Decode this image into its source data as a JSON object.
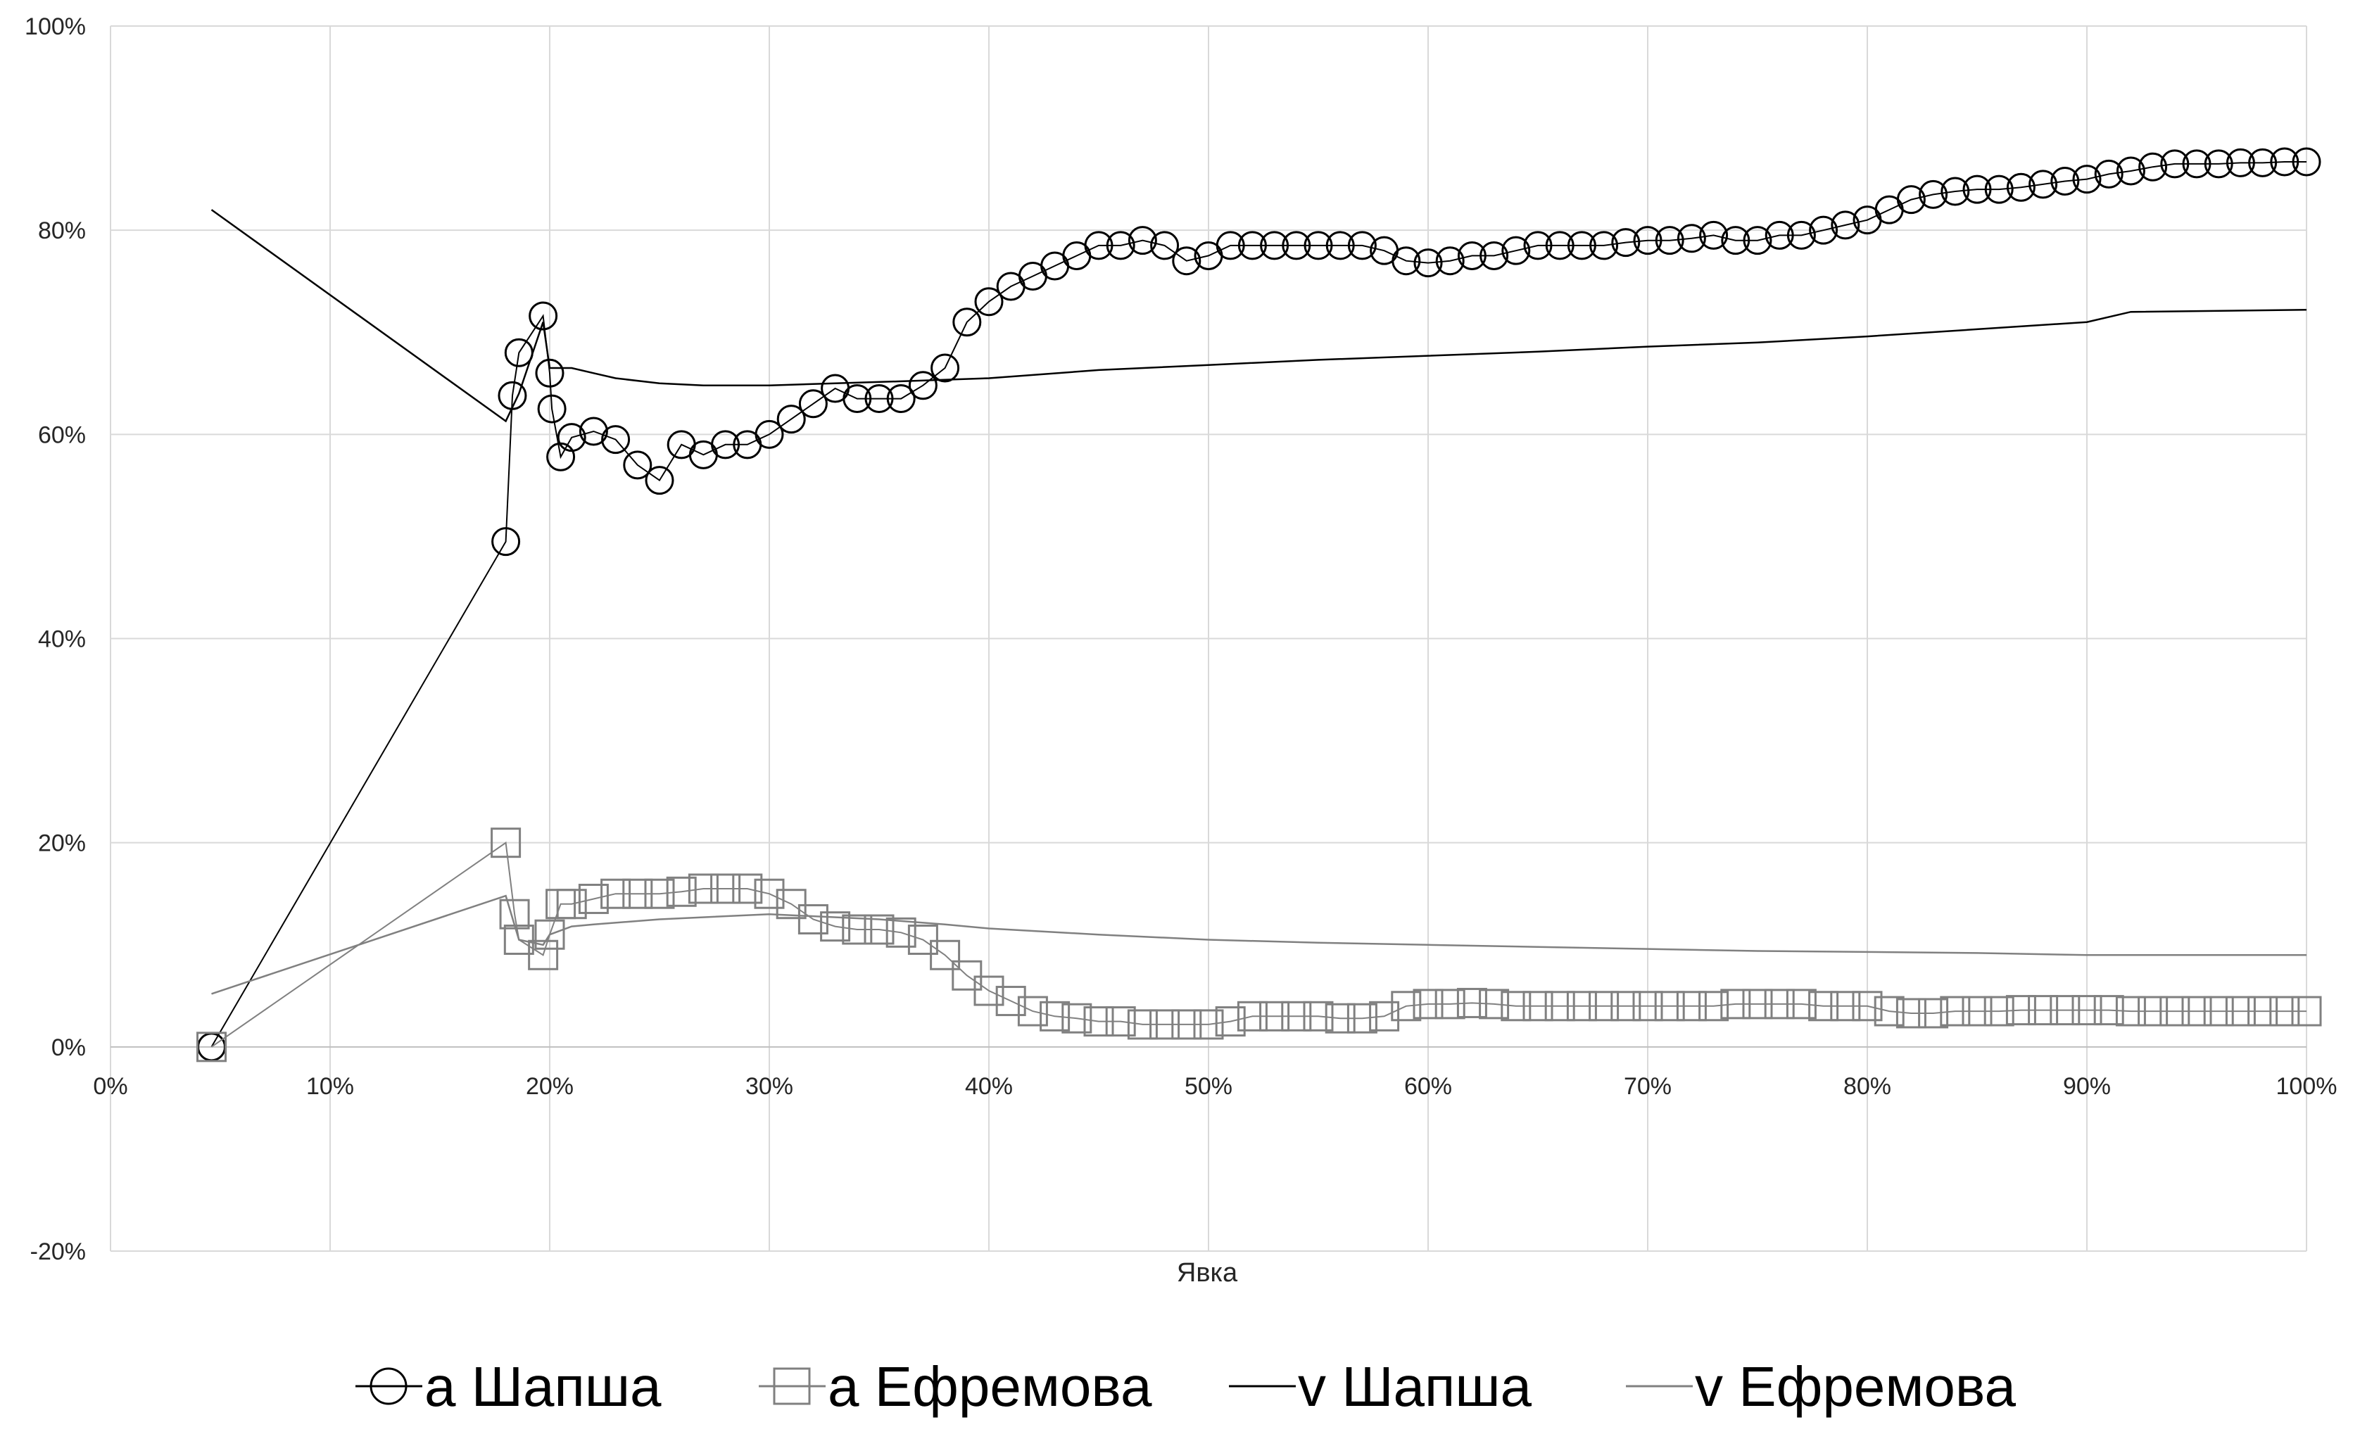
{
  "chart_data": {
    "type": "line",
    "xlabel": "Явка",
    "ylabel": "",
    "xlim": [
      0,
      1
    ],
    "ylim": [
      -0.2,
      1
    ],
    "x_ticks": [
      "0%",
      "10%",
      "20%",
      "30%",
      "40%",
      "50%",
      "60%",
      "70%",
      "80%",
      "90%",
      "100%"
    ],
    "y_ticks": [
      "-20%",
      "0%",
      "20%",
      "40%",
      "60%",
      "80%",
      "100%"
    ],
    "grid": true,
    "legend_position": "bottom",
    "series": [
      {
        "name": "а Шапша",
        "style": "line-circle-markers",
        "color": "#000000",
        "points": [
          [
            0.046,
            0.0
          ],
          [
            0.18,
            0.495
          ],
          [
            0.183,
            0.638
          ],
          [
            0.186,
            0.68
          ],
          [
            0.197,
            0.716
          ],
          [
            0.2,
            0.66
          ],
          [
            0.201,
            0.625
          ],
          [
            0.205,
            0.578
          ],
          [
            0.21,
            0.597
          ],
          [
            0.22,
            0.603
          ],
          [
            0.23,
            0.595
          ],
          [
            0.24,
            0.57
          ],
          [
            0.25,
            0.555
          ],
          [
            0.26,
            0.59
          ],
          [
            0.27,
            0.58
          ],
          [
            0.28,
            0.59
          ],
          [
            0.29,
            0.59
          ],
          [
            0.3,
            0.6
          ],
          [
            0.31,
            0.615
          ],
          [
            0.32,
            0.63
          ],
          [
            0.33,
            0.645
          ],
          [
            0.34,
            0.635
          ],
          [
            0.35,
            0.635
          ],
          [
            0.36,
            0.635
          ],
          [
            0.37,
            0.648
          ],
          [
            0.38,
            0.665
          ],
          [
            0.39,
            0.71
          ],
          [
            0.4,
            0.73
          ],
          [
            0.41,
            0.745
          ],
          [
            0.42,
            0.755
          ],
          [
            0.43,
            0.765
          ],
          [
            0.44,
            0.775
          ],
          [
            0.45,
            0.785
          ],
          [
            0.46,
            0.785
          ],
          [
            0.47,
            0.79
          ],
          [
            0.48,
            0.785
          ],
          [
            0.49,
            0.77
          ],
          [
            0.5,
            0.775
          ],
          [
            0.51,
            0.785
          ],
          [
            0.52,
            0.785
          ],
          [
            0.53,
            0.785
          ],
          [
            0.54,
            0.785
          ],
          [
            0.55,
            0.785
          ],
          [
            0.56,
            0.785
          ],
          [
            0.57,
            0.785
          ],
          [
            0.58,
            0.78
          ],
          [
            0.59,
            0.77
          ],
          [
            0.6,
            0.768
          ],
          [
            0.61,
            0.77
          ],
          [
            0.62,
            0.775
          ],
          [
            0.63,
            0.775
          ],
          [
            0.64,
            0.78
          ],
          [
            0.65,
            0.785
          ],
          [
            0.66,
            0.785
          ],
          [
            0.67,
            0.785
          ],
          [
            0.68,
            0.785
          ],
          [
            0.69,
            0.788
          ],
          [
            0.7,
            0.79
          ],
          [
            0.71,
            0.79
          ],
          [
            0.72,
            0.792
          ],
          [
            0.73,
            0.795
          ],
          [
            0.74,
            0.79
          ],
          [
            0.75,
            0.79
          ],
          [
            0.76,
            0.795
          ],
          [
            0.77,
            0.795
          ],
          [
            0.78,
            0.8
          ],
          [
            0.79,
            0.805
          ],
          [
            0.8,
            0.81
          ],
          [
            0.81,
            0.82
          ],
          [
            0.82,
            0.83
          ],
          [
            0.83,
            0.835
          ],
          [
            0.84,
            0.838
          ],
          [
            0.85,
            0.84
          ],
          [
            0.86,
            0.84
          ],
          [
            0.87,
            0.842
          ],
          [
            0.88,
            0.845
          ],
          [
            0.89,
            0.848
          ],
          [
            0.9,
            0.85
          ],
          [
            0.91,
            0.855
          ],
          [
            0.92,
            0.858
          ],
          [
            0.93,
            0.862
          ],
          [
            0.94,
            0.865
          ],
          [
            0.95,
            0.865
          ],
          [
            0.96,
            0.865
          ],
          [
            0.97,
            0.866
          ],
          [
            0.98,
            0.866
          ],
          [
            0.99,
            0.867
          ],
          [
            1.0,
            0.867
          ]
        ]
      },
      {
        "name": "а Ефремова",
        "style": "line-square-markers",
        "color": "#808080",
        "points": [
          [
            0.046,
            0.0
          ],
          [
            0.18,
            0.2
          ],
          [
            0.184,
            0.13
          ],
          [
            0.186,
            0.105
          ],
          [
            0.197,
            0.09
          ],
          [
            0.2,
            0.11
          ],
          [
            0.205,
            0.14
          ],
          [
            0.21,
            0.14
          ],
          [
            0.22,
            0.145
          ],
          [
            0.23,
            0.15
          ],
          [
            0.24,
            0.15
          ],
          [
            0.25,
            0.15
          ],
          [
            0.26,
            0.152
          ],
          [
            0.27,
            0.155
          ],
          [
            0.28,
            0.155
          ],
          [
            0.29,
            0.155
          ],
          [
            0.3,
            0.15
          ],
          [
            0.31,
            0.14
          ],
          [
            0.32,
            0.125
          ],
          [
            0.33,
            0.118
          ],
          [
            0.34,
            0.115
          ],
          [
            0.35,
            0.115
          ],
          [
            0.36,
            0.112
          ],
          [
            0.37,
            0.105
          ],
          [
            0.38,
            0.09
          ],
          [
            0.39,
            0.07
          ],
          [
            0.4,
            0.055
          ],
          [
            0.41,
            0.045
          ],
          [
            0.42,
            0.035
          ],
          [
            0.43,
            0.03
          ],
          [
            0.44,
            0.028
          ],
          [
            0.45,
            0.025
          ],
          [
            0.46,
            0.025
          ],
          [
            0.47,
            0.022
          ],
          [
            0.48,
            0.022
          ],
          [
            0.49,
            0.022
          ],
          [
            0.5,
            0.022
          ],
          [
            0.51,
            0.025
          ],
          [
            0.52,
            0.03
          ],
          [
            0.53,
            0.03
          ],
          [
            0.54,
            0.03
          ],
          [
            0.55,
            0.03
          ],
          [
            0.56,
            0.028
          ],
          [
            0.57,
            0.028
          ],
          [
            0.58,
            0.03
          ],
          [
            0.59,
            0.04
          ],
          [
            0.6,
            0.042
          ],
          [
            0.61,
            0.042
          ],
          [
            0.62,
            0.043
          ],
          [
            0.63,
            0.042
          ],
          [
            0.64,
            0.04
          ],
          [
            0.65,
            0.04
          ],
          [
            0.66,
            0.04
          ],
          [
            0.67,
            0.04
          ],
          [
            0.68,
            0.04
          ],
          [
            0.69,
            0.04
          ],
          [
            0.7,
            0.04
          ],
          [
            0.71,
            0.04
          ],
          [
            0.72,
            0.04
          ],
          [
            0.73,
            0.04
          ],
          [
            0.74,
            0.042
          ],
          [
            0.75,
            0.042
          ],
          [
            0.76,
            0.042
          ],
          [
            0.77,
            0.042
          ],
          [
            0.78,
            0.04
          ],
          [
            0.79,
            0.04
          ],
          [
            0.8,
            0.04
          ],
          [
            0.81,
            0.035
          ],
          [
            0.82,
            0.033
          ],
          [
            0.83,
            0.033
          ],
          [
            0.84,
            0.035
          ],
          [
            0.85,
            0.035
          ],
          [
            0.86,
            0.035
          ],
          [
            0.87,
            0.036
          ],
          [
            0.88,
            0.036
          ],
          [
            0.89,
            0.036
          ],
          [
            0.9,
            0.036
          ],
          [
            0.91,
            0.036
          ],
          [
            0.92,
            0.035
          ],
          [
            0.93,
            0.035
          ],
          [
            0.94,
            0.035
          ],
          [
            0.95,
            0.035
          ],
          [
            0.96,
            0.035
          ],
          [
            0.97,
            0.035
          ],
          [
            0.98,
            0.035
          ],
          [
            0.99,
            0.035
          ],
          [
            1.0,
            0.035
          ]
        ]
      },
      {
        "name": "v Шапша",
        "style": "line",
        "color": "#000000",
        "points": [
          [
            0.046,
            0.82
          ],
          [
            0.18,
            0.613
          ],
          [
            0.186,
            0.64
          ],
          [
            0.197,
            0.71
          ],
          [
            0.2,
            0.665
          ],
          [
            0.21,
            0.665
          ],
          [
            0.22,
            0.66
          ],
          [
            0.23,
            0.655
          ],
          [
            0.25,
            0.65
          ],
          [
            0.27,
            0.648
          ],
          [
            0.3,
            0.648
          ],
          [
            0.33,
            0.65
          ],
          [
            0.36,
            0.652
          ],
          [
            0.4,
            0.655
          ],
          [
            0.45,
            0.663
          ],
          [
            0.5,
            0.668
          ],
          [
            0.55,
            0.673
          ],
          [
            0.6,
            0.677
          ],
          [
            0.65,
            0.681
          ],
          [
            0.7,
            0.686
          ],
          [
            0.75,
            0.69
          ],
          [
            0.8,
            0.696
          ],
          [
            0.85,
            0.703
          ],
          [
            0.9,
            0.71
          ],
          [
            0.92,
            0.72
          ],
          [
            1.0,
            0.722
          ]
        ]
      },
      {
        "name": "v Ефремова",
        "style": "line",
        "color": "#808080",
        "points": [
          [
            0.046,
            0.052
          ],
          [
            0.18,
            0.148
          ],
          [
            0.186,
            0.105
          ],
          [
            0.197,
            0.1
          ],
          [
            0.2,
            0.11
          ],
          [
            0.21,
            0.118
          ],
          [
            0.22,
            0.12
          ],
          [
            0.25,
            0.125
          ],
          [
            0.3,
            0.13
          ],
          [
            0.35,
            0.125
          ],
          [
            0.38,
            0.12
          ],
          [
            0.4,
            0.116
          ],
          [
            0.45,
            0.11
          ],
          [
            0.5,
            0.105
          ],
          [
            0.55,
            0.102
          ],
          [
            0.6,
            0.1
          ],
          [
            0.65,
            0.098
          ],
          [
            0.7,
            0.096
          ],
          [
            0.75,
            0.094
          ],
          [
            0.8,
            0.093
          ],
          [
            0.85,
            0.092
          ],
          [
            0.9,
            0.09
          ],
          [
            0.95,
            0.09
          ],
          [
            1.0,
            0.09
          ]
        ]
      }
    ]
  }
}
